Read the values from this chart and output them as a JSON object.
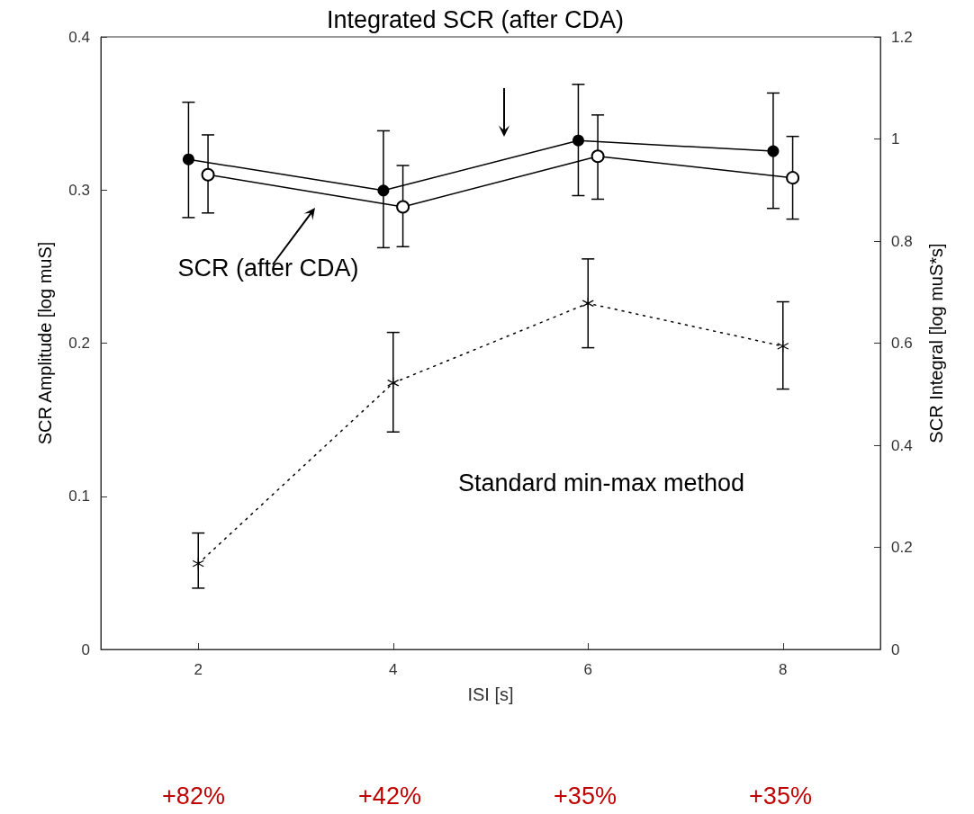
{
  "chart_data": {
    "type": "line",
    "xlabel": "ISI [s]",
    "ylabel": "SCR Amplitude [log muS]",
    "y2label": "SCR Integral [log muS*s]",
    "xlim": [
      1,
      9
    ],
    "xticks": [
      2,
      4,
      6,
      8
    ],
    "ylim": [
      0,
      0.4
    ],
    "yticks": [
      0,
      0.1,
      0.2,
      0.3,
      0.4
    ],
    "y2lim": [
      0,
      1.2
    ],
    "y2ticks": [
      0,
      0.2,
      0.4,
      0.6,
      0.8,
      1,
      1.2
    ],
    "grid": false,
    "series": [
      {
        "axis": "y2",
        "color": "#000000",
        "marker": "circle",
        "line_style": "solid",
        "x": [
          1.9,
          3.9,
          5.9,
          7.9
        ],
        "values": [
          0.96,
          0.899,
          0.997,
          0.976
        ],
        "errors": [
          [
            0.846,
            1.072
          ],
          [
            0.787,
            1.016
          ],
          [
            0.889,
            1.107
          ],
          [
            0.864,
            1.09
          ]
        ]
      },
      {
        "axis": "y",
        "color": "#000000",
        "marker": "circle",
        "line_style": "solid",
        "x": [
          2.1,
          4.1,
          6.1,
          8.1
        ],
        "values": [
          0.31,
          0.289,
          0.322,
          0.308
        ],
        "errors": [
          [
            0.285,
            0.336
          ],
          [
            0.263,
            0.316
          ],
          [
            0.294,
            0.349
          ],
          [
            0.281,
            0.335
          ]
        ]
      },
      {
        "axis": "y",
        "color": "#000000",
        "marker": "cross",
        "line_style": "dotted",
        "x": [
          2,
          4,
          6,
          8
        ],
        "values": [
          0.056,
          0.174,
          0.226,
          0.198
        ],
        "errors": [
          [
            0.04,
            0.076
          ],
          [
            0.142,
            0.207
          ],
          [
            0.197,
            0.255
          ],
          [
            0.17,
            0.227
          ]
        ]
      }
    ],
    "annotations": [
      "Integrated SCR (after CDA)",
      "SCR (after CDA)",
      "Standard min-max method",
      "+82%",
      "+42%",
      "+35%",
      "+35%"
    ]
  }
}
